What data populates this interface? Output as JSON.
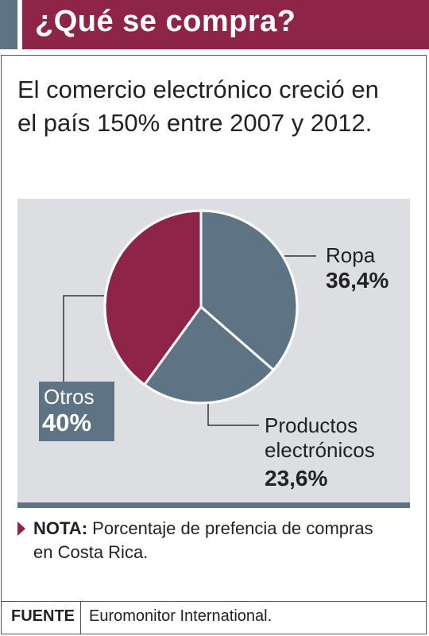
{
  "header": {
    "title": "¿Qué se compra?"
  },
  "headline": "El comercio electrónico creció en el país 150% entre 2007 y 2012.",
  "colors": {
    "accent": "#8e2447",
    "slate": "#5e7384",
    "panel": "#dddee1"
  },
  "chart_data": {
    "type": "pie",
    "slices": [
      {
        "name": "Ropa",
        "value": 36.4,
        "label": "36,4%",
        "color": "#5e7384"
      },
      {
        "name": "Productos electrónicos",
        "name_lines": [
          "Productos",
          "electrónicos"
        ],
        "value": 23.6,
        "label": "23,6%",
        "color": "#5e7384"
      },
      {
        "name": "Otros",
        "value": 40,
        "label": "40%",
        "color": "#8e2447"
      }
    ]
  },
  "note": {
    "key": "NOTA:",
    "text": "Porcentaje de prefencia de compras en Costa Rica."
  },
  "footer": {
    "key": "FUENTE",
    "value": "Euromonitor International."
  }
}
